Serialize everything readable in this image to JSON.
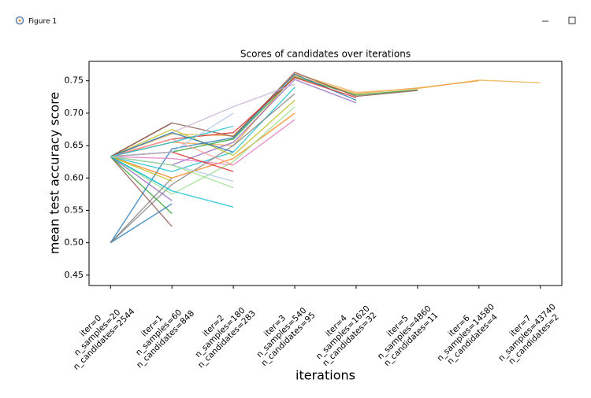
{
  "window": {
    "title": "Figure 1"
  },
  "chart_data": {
    "type": "line",
    "title": "Scores of candidates over iterations",
    "xlabel": "iterations",
    "ylabel": "mean test accuracy score",
    "x": [
      0,
      1,
      2,
      3,
      4,
      5,
      6,
      7
    ],
    "xlim": [
      -0.35,
      7.35
    ],
    "xticks": [
      {
        "value": 0,
        "label": [
          "iter=0",
          "n_samples=20",
          "n_candidates=2544"
        ]
      },
      {
        "value": 1,
        "label": [
          "iter=1",
          "n_samples=60",
          "n_candidates=848"
        ]
      },
      {
        "value": 2,
        "label": [
          "iter=2",
          "n_samples=180",
          "n_candidates=283"
        ]
      },
      {
        "value": 3,
        "label": [
          "iter=3",
          "n_samples=540",
          "n_candidates=95"
        ]
      },
      {
        "value": 4,
        "label": [
          "iter=4",
          "n_samples=1620",
          "n_candidates=32"
        ]
      },
      {
        "value": 5,
        "label": [
          "iter=5",
          "n_samples=4860",
          "n_candidates=11"
        ]
      },
      {
        "value": 6,
        "label": [
          "iter=6",
          "n_samples=14580",
          "n_candidates=4"
        ]
      },
      {
        "value": 7,
        "label": [
          "iter=7",
          "n_samples=43740",
          "n_candidates=2"
        ]
      }
    ],
    "ylim": [
      0.434,
      0.78
    ],
    "yticks": [
      0.45,
      {
        "value": 0.5,
        "label": "0.50"
      },
      0.55,
      {
        "value": 0.6,
        "label": "0.60"
      },
      0.65,
      {
        "value": 0.7,
        "label": "0.70"
      },
      0.75
    ],
    "grid": false,
    "series": [
      {
        "color": "#e8b04a",
        "values": [
          0.633,
          0.668,
          0.665,
          0.761,
          0.732,
          0.738,
          0.751,
          0.747
        ]
      },
      {
        "color": "#f0a040",
        "values": [
          0.633,
          0.655,
          0.65,
          0.758,
          0.73,
          0.739,
          0.75,
          null
        ]
      },
      {
        "color": "#2ca02c",
        "values": [
          0.633,
          0.64,
          0.66,
          0.756,
          0.728,
          0.736,
          null,
          null
        ]
      },
      {
        "color": "#8c564b",
        "values": [
          0.633,
          0.685,
          0.664,
          0.763,
          0.726,
          0.735,
          null,
          null
        ]
      },
      {
        "color": "#1f77b4",
        "values": [
          0.5,
          0.645,
          0.662,
          0.76,
          0.72,
          null,
          null,
          null
        ]
      },
      {
        "color": "#9467bd",
        "values": [
          0.633,
          0.62,
          0.655,
          0.752,
          0.716,
          null,
          null,
          null
        ]
      },
      {
        "color": "#d62728",
        "values": [
          0.633,
          0.66,
          0.67,
          0.755,
          0.724,
          null,
          null,
          null
        ]
      },
      {
        "color": "#17becf",
        "values": [
          0.633,
          0.61,
          0.64,
          0.74,
          null,
          null,
          null,
          null
        ]
      },
      {
        "color": "#7f7f7f",
        "values": [
          0.5,
          0.59,
          0.65,
          0.73,
          null,
          null,
          null,
          null
        ]
      },
      {
        "color": "#c5b0d5",
        "values": [
          0.633,
          0.67,
          0.71,
          0.745,
          null,
          null,
          null,
          null
        ]
      },
      {
        "color": "#ff7f0e",
        "values": [
          0.633,
          0.6,
          0.63,
          0.7,
          null,
          null,
          null,
          null
        ]
      },
      {
        "color": "#e377c2",
        "values": [
          0.633,
          0.63,
          0.62,
          0.69,
          null,
          null,
          null,
          null
        ]
      },
      {
        "color": "#bcbd22",
        "values": [
          0.633,
          0.675,
          0.635,
          0.72,
          null,
          null,
          null,
          null
        ]
      },
      {
        "color": "#98df8a",
        "values": [
          0.633,
          0.575,
          0.625,
          0.71,
          null,
          null,
          null,
          null
        ]
      },
      {
        "color": "#17becf",
        "values": [
          0.633,
          0.58,
          0.555,
          null,
          null,
          null,
          null,
          null
        ]
      },
      {
        "color": "#aec7e8",
        "values": [
          0.633,
          0.62,
          0.595,
          null,
          null,
          null,
          null,
          null
        ]
      },
      {
        "color": "#d62728",
        "values": [
          0.633,
          0.64,
          0.61,
          null,
          null,
          null,
          null,
          null
        ]
      },
      {
        "color": "#1f77b4",
        "values": [
          0.633,
          0.67,
          0.64,
          null,
          null,
          null,
          null,
          null
        ]
      },
      {
        "color": "#ff9896",
        "values": [
          0.633,
          0.66,
          0.62,
          null,
          null,
          null,
          null,
          null
        ]
      },
      {
        "color": "#8c564b",
        "values": [
          0.633,
          0.525,
          null,
          null,
          null,
          null,
          null,
          null
        ]
      },
      {
        "color": "#2ca02c",
        "values": [
          0.633,
          0.545,
          null,
          null,
          null,
          null,
          null,
          null
        ]
      },
      {
        "color": "#1f77b4",
        "values": [
          0.5,
          0.56,
          null,
          null,
          null,
          null,
          null,
          null
        ]
      },
      {
        "color": "#9467bd",
        "values": [
          0.633,
          0.565,
          null,
          null,
          null,
          null,
          null,
          null
        ]
      },
      {
        "color": "#7f7f7f",
        "values": [
          0.5,
          0.6,
          null,
          null,
          null,
          null,
          null,
          null
        ]
      },
      {
        "color": "#bcbd22",
        "values": [
          0.633,
          0.595,
          null,
          null,
          null,
          null,
          null,
          null
        ]
      },
      {
        "color": "#8c564b",
        "values": [
          0.633,
          0.685,
          null,
          null,
          null,
          null,
          null,
          null
        ]
      },
      {
        "color": "#17becf",
        "values": [
          0.633,
          0.58,
          null,
          null,
          null,
          null,
          null,
          null
        ]
      },
      {
        "color": "#17becf",
        "values": [
          0.633,
          0.655,
          0.68,
          null,
          null,
          null,
          null,
          null
        ]
      },
      {
        "color": "#aec7e8",
        "values": [
          0.633,
          0.64,
          0.7,
          null,
          null,
          null,
          null,
          null
        ]
      },
      {
        "color": "#98df8a",
        "values": [
          0.633,
          0.62,
          0.585,
          null,
          null,
          null,
          null,
          null
        ]
      }
    ]
  }
}
